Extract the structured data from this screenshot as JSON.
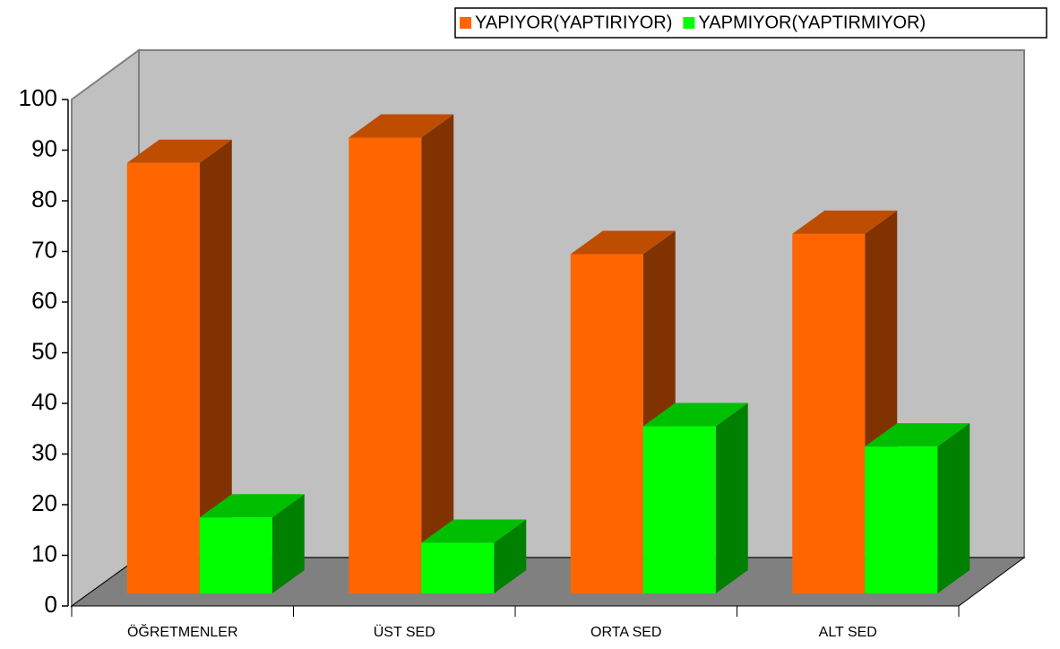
{
  "chart_data": {
    "type": "bar3d",
    "categories": [
      "ÖĞRETMENLER",
      "ÜST SED",
      "ORTA SED",
      "ALT SED"
    ],
    "series": [
      {
        "name": "YAPIYOR(YAPTIRIYOR)",
        "color": "#ff6600",
        "values": [
          85,
          90,
          67,
          71
        ]
      },
      {
        "name": "YAPMIYOR(YAPTIRMIYOR)",
        "color": "#00ff00",
        "values": [
          15,
          10,
          33,
          29
        ]
      }
    ],
    "ylim": [
      0,
      100
    ],
    "yticks": [
      0,
      10,
      20,
      30,
      40,
      50,
      60,
      70,
      80,
      90,
      100
    ],
    "legend": "top-right"
  }
}
